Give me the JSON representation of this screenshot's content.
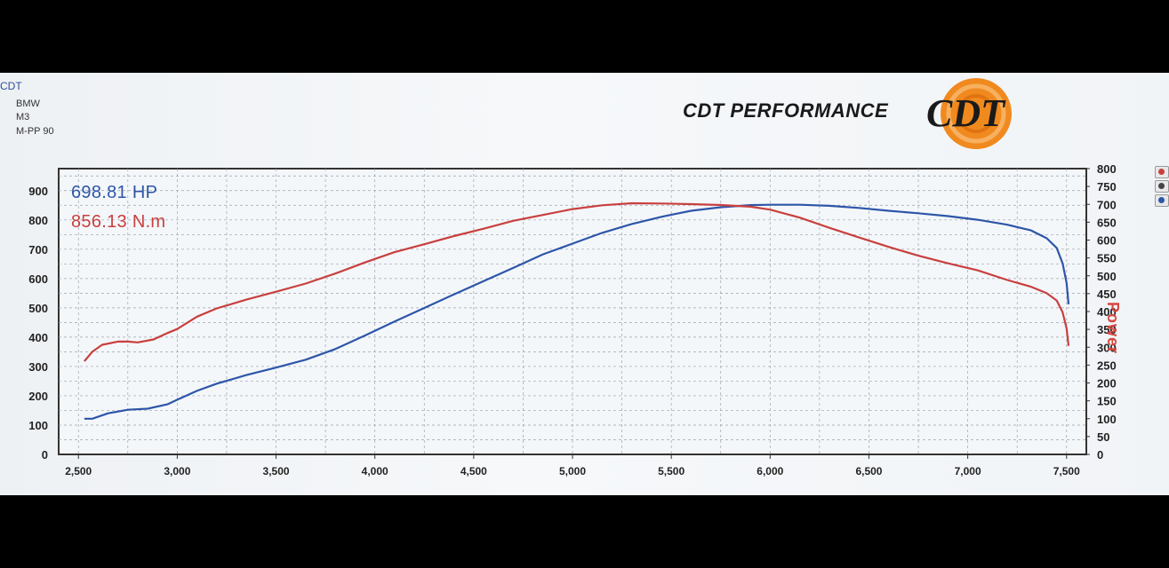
{
  "header": {
    "id": "CDT",
    "make": "BMW",
    "model": "M3",
    "variant": "M-PP 90"
  },
  "brand": {
    "name": "CDT PERFORMANCE",
    "logo_text": "CDT"
  },
  "colors": {
    "hp": "#2d56a8",
    "torque": "#c8403e",
    "grid": "#9aa3ad",
    "logo_orange": "#f08a1f"
  },
  "chart_data": {
    "type": "line",
    "xlim": [
      2400,
      7600
    ],
    "x_ticks": [
      "2,500",
      "3,000",
      "3,500",
      "4,000",
      "4,500",
      "5,000",
      "5,500",
      "6,000",
      "6,500",
      "7,000",
      "7,500"
    ],
    "y_left_lim": [
      0,
      975
    ],
    "y_left_ticks": [
      "0",
      "100",
      "200",
      "300",
      "400",
      "500",
      "600",
      "700",
      "800",
      "900"
    ],
    "y_right_lim": [
      0,
      800
    ],
    "y_right_ticks": [
      "0",
      "50",
      "100",
      "150",
      "200",
      "250",
      "300",
      "350",
      "400",
      "450",
      "500",
      "550",
      "600",
      "650",
      "700",
      "750",
      "800"
    ],
    "ylabel_right": "Power",
    "grid": true,
    "series": [
      {
        "name": "698.81 HP",
        "axis": "right",
        "x": [
          2530,
          2570,
          2650,
          2750,
          2850,
          2950,
          3000,
          3100,
          3200,
          3350,
          3500,
          3650,
          3800,
          3950,
          4100,
          4250,
          4400,
          4550,
          4700,
          4850,
          5000,
          5150,
          5300,
          5450,
          5600,
          5750,
          5900,
          6000,
          6150,
          6300,
          6450,
          6600,
          6750,
          6900,
          7050,
          7200,
          7320,
          7400,
          7450,
          7480,
          7500,
          7510
        ],
        "y": [
          100,
          100,
          115,
          125,
          128,
          140,
          153,
          178,
          198,
          222,
          243,
          265,
          295,
          333,
          372,
          410,
          448,
          485,
          522,
          560,
          590,
          620,
          645,
          665,
          682,
          692,
          698,
          699,
          699,
          696,
          690,
          682,
          675,
          667,
          657,
          643,
          627,
          605,
          578,
          535,
          480,
          420
        ]
      },
      {
        "name": "856.13 N.m",
        "axis": "left",
        "x": [
          2530,
          2570,
          2620,
          2700,
          2750,
          2800,
          2880,
          2950,
          3000,
          3100,
          3200,
          3350,
          3500,
          3650,
          3800,
          3950,
          4100,
          4250,
          4400,
          4550,
          4700,
          4850,
          5000,
          5150,
          5300,
          5450,
          5600,
          5750,
          5900,
          6000,
          6150,
          6300,
          6450,
          6600,
          6750,
          6900,
          7050,
          7200,
          7320,
          7400,
          7450,
          7480,
          7500,
          7510
        ],
        "y": [
          318,
          350,
          374,
          385,
          385,
          382,
          392,
          414,
          428,
          470,
          498,
          528,
          555,
          583,
          617,
          655,
          690,
          717,
          745,
          770,
          797,
          817,
          837,
          850,
          857,
          856,
          854,
          851,
          845,
          835,
          808,
          773,
          740,
          708,
          678,
          652,
          628,
          595,
          572,
          550,
          525,
          485,
          430,
          370
        ]
      }
    ]
  }
}
